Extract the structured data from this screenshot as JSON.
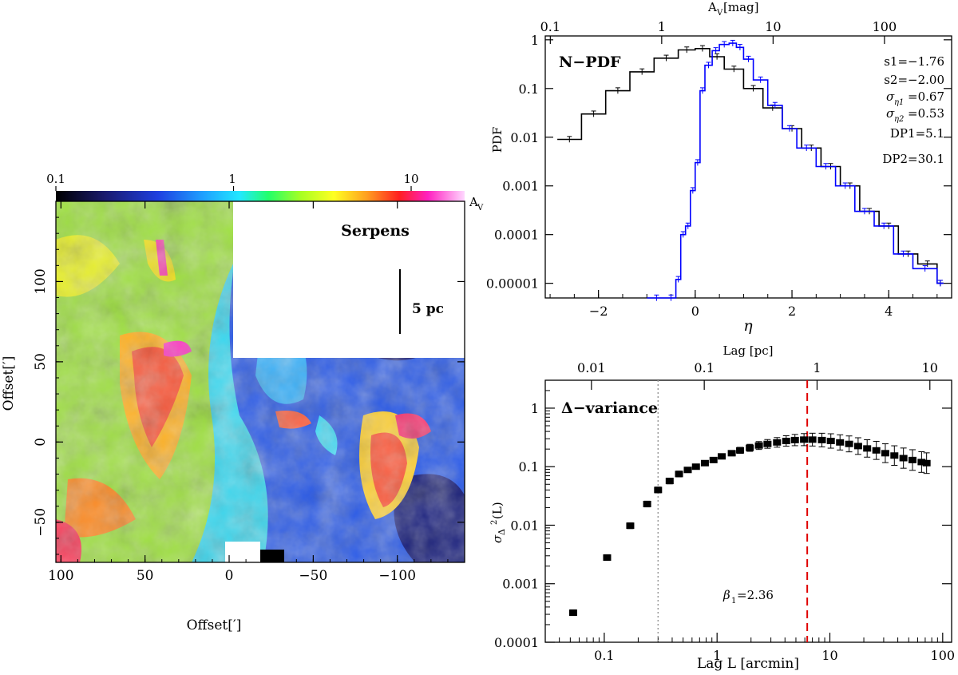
{
  "map_panel": {
    "title": "Serpens",
    "scale_bar_label": "5 pc",
    "colorbar": {
      "label": "A",
      "label_sub": "V",
      "ticks": [
        "0.1",
        "1",
        "10"
      ],
      "tick_values": [
        0.1,
        1,
        10
      ],
      "range": [
        0.1,
        20
      ]
    },
    "xlabel": "Offset[′]",
    "ylabel": "Offset[′]",
    "xticks": [
      "100",
      "50",
      "0",
      "−50",
      "−100"
    ],
    "xtick_values": [
      100,
      50,
      0,
      -50,
      -100
    ],
    "yticks": [
      "100",
      "50",
      "0",
      "−50"
    ],
    "ytick_values": [
      100,
      50,
      0,
      -50
    ],
    "xlim": [
      103,
      -140
    ],
    "ylim": [
      -75,
      150
    ]
  },
  "chart_data": [
    {
      "type": "line",
      "panel": "N-PDF",
      "title": "N−PDF",
      "xlabel": "η",
      "ylabel": "PDF",
      "top_axis_label": "A",
      "top_axis_label_sub": "V",
      "top_axis_unit": " [mag]",
      "top_axis_ticks": [
        "0.1",
        "1",
        "10",
        "100"
      ],
      "top_axis_tick_values": [
        0.1,
        1,
        10,
        100
      ],
      "xlim": [
        -3.1,
        5.3
      ],
      "ylim": [
        5e-06,
        1.2
      ],
      "yscale": "log",
      "xticks": [
        "−2",
        "0",
        "2",
        "4"
      ],
      "xtick_values": [
        -2,
        0,
        2,
        4
      ],
      "yticks": [
        "0.00001",
        "0.0001",
        "0.001",
        "0.01",
        "0.1",
        "1"
      ],
      "ytick_values": [
        1e-05,
        0.0001,
        0.001,
        0.01,
        0.1,
        1
      ],
      "annotations": [
        "s1=−1.76",
        "s2=−2.00",
        "σ",
        "=0.67",
        "σ",
        "=0.53",
        "DP1=5.1",
        "DP2=30.1"
      ],
      "sigma_subscripts": [
        "η1",
        "η2"
      ],
      "series": [
        {
          "color": "#000000",
          "x": [
            -2.85,
            -2.35,
            -1.85,
            -1.35,
            -0.85,
            -0.35,
            0.0,
            0.3,
            0.6,
            1.0,
            1.4,
            1.8,
            2.2,
            2.6,
            3.0,
            3.4,
            3.8,
            4.2,
            4.6,
            5.0
          ],
          "y": [
            0.009,
            0.03,
            0.09,
            0.22,
            0.42,
            0.62,
            0.66,
            0.45,
            0.25,
            0.1,
            0.04,
            0.015,
            0.006,
            0.0025,
            0.001,
            0.0003,
            0.00015,
            4e-05,
            2.5e-05,
            1e-05
          ]
        },
        {
          "color": "#0000ff",
          "x": [
            -1.0,
            -0.6,
            -0.4,
            -0.3,
            -0.2,
            -0.1,
            0.0,
            0.1,
            0.2,
            0.35,
            0.5,
            0.7,
            0.85,
            1.0,
            1.2,
            1.5,
            1.8,
            2.1,
            2.5,
            2.9,
            3.3,
            3.7,
            4.1,
            4.5,
            5.0
          ],
          "y": [
            5e-06,
            5e-06,
            1.2e-05,
            0.0001,
            0.00015,
            0.0008,
            0.003,
            0.09,
            0.3,
            0.6,
            0.8,
            0.85,
            0.7,
            0.4,
            0.15,
            0.045,
            0.015,
            0.006,
            0.0025,
            0.001,
            0.0003,
            0.00015,
            4e-05,
            2e-05,
            1e-05
          ]
        }
      ]
    },
    {
      "type": "scatter",
      "panel": "Delta-variance",
      "title": "Δ−variance",
      "xlabel": "Lag L [arcmin]",
      "ylabel_sigma": "σ",
      "ylabel_delta": "Δ",
      "ylabel_sup": "2",
      "ylabel_tail": "(L)",
      "top_axis_label": "Lag [pc]",
      "top_axis_ticks": [
        "0.01",
        "0.1",
        "1",
        "10"
      ],
      "top_axis_tick_values": [
        0.01,
        0.1,
        1,
        10
      ],
      "xscale": "log",
      "yscale": "log",
      "xlim": [
        0.03,
        120
      ],
      "ylim": [
        0.0001,
        3
      ],
      "xticks": [
        "0.1",
        "1",
        "10",
        "100"
      ],
      "xtick_values": [
        0.1,
        1,
        10,
        100
      ],
      "yticks": [
        "0.0001",
        "0.001",
        "0.01",
        "0.1",
        "1"
      ],
      "ytick_values": [
        0.0001,
        0.001,
        0.01,
        0.1,
        1
      ],
      "vlines": [
        {
          "x": 0.3,
          "style": "dotted",
          "color": "#999999"
        },
        {
          "x": 6.3,
          "style": "dashed",
          "color": "#e00000"
        }
      ],
      "annotation": "=2.36",
      "annotation_symbol": "β",
      "annotation_sub": "1",
      "series": [
        {
          "color": "#000000",
          "x": [
            0.053,
            0.106,
            0.17,
            0.24,
            0.3,
            0.38,
            0.46,
            0.55,
            0.65,
            0.78,
            0.93,
            1.1,
            1.35,
            1.6,
            1.95,
            2.35,
            2.8,
            3.4,
            4.1,
            4.9,
            5.9,
            7.0,
            8.5,
            10.2,
            12.3,
            14.8,
            17.8,
            21.4,
            25.8,
            31.0,
            37.3,
            44.9,
            54.0,
            65.0,
            72.0
          ],
          "y": [
            0.00032,
            0.0028,
            0.0098,
            0.023,
            0.04,
            0.057,
            0.075,
            0.088,
            0.1,
            0.115,
            0.13,
            0.15,
            0.17,
            0.19,
            0.21,
            0.23,
            0.245,
            0.26,
            0.275,
            0.285,
            0.29,
            0.29,
            0.285,
            0.275,
            0.26,
            0.245,
            0.225,
            0.205,
            0.19,
            0.17,
            0.155,
            0.14,
            0.13,
            0.12,
            0.115
          ]
        }
      ]
    }
  ],
  "colors": {
    "npdf_black": "#000000",
    "npdf_blue": "#0000ff",
    "dp_line_red": "#e00000",
    "dotted_grey": "#999999"
  }
}
